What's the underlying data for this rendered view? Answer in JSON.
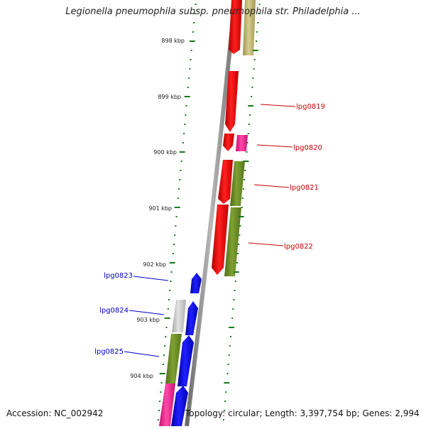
{
  "title": "Legionella pneumophila subsp. pneumophila str. Philadelphia ...",
  "footer": {
    "accession": "Accession: NC_002942",
    "summary": "Topology: circular; Length: 3,397,754 bp; Genes: 2,994"
  },
  "scale_ticks": [
    "898 kbp",
    "899 kbp",
    "900 kbp",
    "901 kbp",
    "902 kbp",
    "903 kbp",
    "904 kbp"
  ],
  "gene_labels_right": [
    "lpg0819",
    "lpg0820",
    "lpg0821",
    "lpg0822"
  ],
  "gene_labels_left": [
    "lpg0823",
    "lpg0824",
    "lpg0825"
  ],
  "colors": {
    "forward_gene": "#ff0000",
    "reverse_gene": "#0000ff",
    "label_forward": "#cc0000",
    "label_reverse": "#0000cc",
    "tick_green": "#1a7a1a",
    "olive_gene": "#6b8e23",
    "khaki_gene": "#bdb76b",
    "magenta_gene": "#ff1493",
    "grey_gene": "#c8c8c8",
    "backbone": "#888888"
  }
}
